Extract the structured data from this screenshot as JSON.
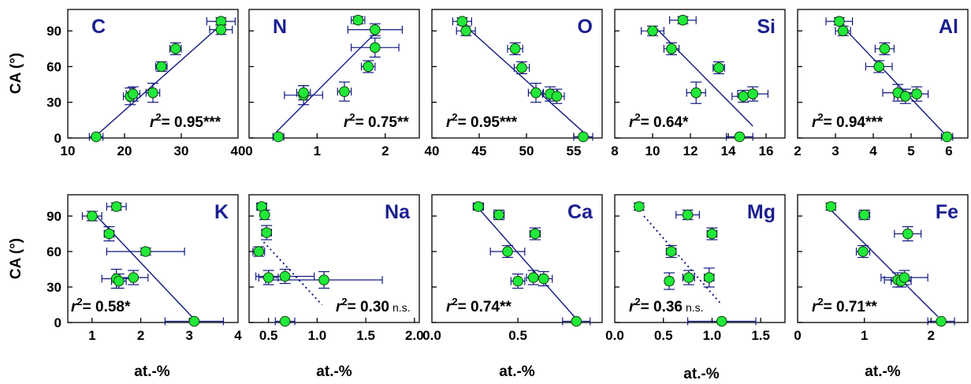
{
  "figure": {
    "y_axis_label": "CA (°)",
    "x_axis_label": "at.-%"
  },
  "colors": {
    "axis": "#000000",
    "line": "#101880",
    "marker_fill": "#22e83a",
    "marker_edge": "#0b3d0b",
    "element_label": "#1b1f8f"
  },
  "chart_data": [
    {
      "type": "scatter",
      "element": "C",
      "xticks": [
        "10",
        "20",
        "30",
        "40"
      ],
      "xlim": [
        10,
        40
      ],
      "yticks": [
        "0",
        "30",
        "60",
        "90"
      ],
      "ylim": [
        0,
        108
      ],
      "r2_text": "0.95***",
      "fit": {
        "style": "solid",
        "from": [
          15,
          2
        ],
        "to": [
          37,
          95
        ]
      },
      "points": [
        {
          "x": 15.0,
          "y": 1,
          "xerr": 1.2,
          "yerr": 0
        },
        {
          "x": 21.0,
          "y": 35,
          "xerr": 1.2,
          "yerr": 7
        },
        {
          "x": 21.5,
          "y": 37,
          "xerr": 1.2,
          "yerr": 6
        },
        {
          "x": 25.0,
          "y": 38,
          "xerr": 1.2,
          "yerr": 8
        },
        {
          "x": 26.5,
          "y": 60,
          "xerr": 1.0,
          "yerr": 4
        },
        {
          "x": 29.0,
          "y": 75,
          "xerr": 1.0,
          "yerr": 5
        },
        {
          "x": 37.0,
          "y": 98,
          "xerr": 2.5,
          "yerr": 3
        },
        {
          "x": 37.0,
          "y": 91,
          "xerr": 2.0,
          "yerr": 4
        }
      ]
    },
    {
      "type": "scatter",
      "element": "N",
      "xticks": [
        "0",
        "1",
        "2"
      ],
      "xlim": [
        0,
        2.5
      ],
      "yticks": [],
      "ylim": [
        0,
        108
      ],
      "r2_text": "0.75**",
      "fit": {
        "style": "solid",
        "from": [
          0.4,
          5
        ],
        "to": [
          1.85,
          88
        ]
      },
      "points": [
        {
          "x": 0.43,
          "y": 1,
          "xerr": 0.08,
          "yerr": 0
        },
        {
          "x": 0.8,
          "y": 36,
          "xerr": 0.28,
          "yerr": 8
        },
        {
          "x": 0.8,
          "y": 38,
          "xerr": 0.1,
          "yerr": 6
        },
        {
          "x": 1.4,
          "y": 39,
          "xerr": 0.1,
          "yerr": 8
        },
        {
          "x": 1.6,
          "y": 99,
          "xerr": 0.1,
          "yerr": 3
        },
        {
          "x": 1.85,
          "y": 91,
          "xerr": 0.4,
          "yerr": 5
        },
        {
          "x": 1.75,
          "y": 60,
          "xerr": 0.1,
          "yerr": 5
        },
        {
          "x": 1.85,
          "y": 76,
          "xerr": 0.35,
          "yerr": 8
        }
      ]
    },
    {
      "type": "scatter",
      "element": "O",
      "xticks": [
        "40",
        "45",
        "50",
        "55"
      ],
      "xlim": [
        40,
        58
      ],
      "yticks": [],
      "ylim": [
        0,
        108
      ],
      "r2_text": "0.95***",
      "fit": {
        "style": "solid",
        "from": [
          43,
          98
        ],
        "to": [
          56,
          5
        ]
      },
      "points": [
        {
          "x": 43.2,
          "y": 98,
          "xerr": 1.0,
          "yerr": 3
        },
        {
          "x": 43.6,
          "y": 90,
          "xerr": 1.0,
          "yerr": 4
        },
        {
          "x": 48.8,
          "y": 75,
          "xerr": 0.8,
          "yerr": 5
        },
        {
          "x": 49.5,
          "y": 59,
          "xerr": 0.8,
          "yerr": 5
        },
        {
          "x": 51.0,
          "y": 38,
          "xerr": 0.8,
          "yerr": 8
        },
        {
          "x": 52.5,
          "y": 37,
          "xerr": 0.8,
          "yerr": 6
        },
        {
          "x": 53.2,
          "y": 35,
          "xerr": 0.8,
          "yerr": 6
        },
        {
          "x": 56.0,
          "y": 1,
          "xerr": 1.0,
          "yerr": 0
        }
      ]
    },
    {
      "type": "scatter",
      "element": "Si",
      "xticks": [
        "8",
        "10",
        "12",
        "14",
        "16"
      ],
      "xlim": [
        8,
        17
      ],
      "yticks": [],
      "ylim": [
        0,
        108
      ],
      "r2_text": "0.64*",
      "fit": {
        "style": "solid",
        "from": [
          10.2,
          92
        ],
        "to": [
          15.3,
          10
        ]
      },
      "points": [
        {
          "x": 10.0,
          "y": 90,
          "xerr": 0.6,
          "yerr": 4
        },
        {
          "x": 11.6,
          "y": 99,
          "xerr": 0.7,
          "yerr": 3
        },
        {
          "x": 11.0,
          "y": 75,
          "xerr": 0.4,
          "yerr": 5
        },
        {
          "x": 12.3,
          "y": 38,
          "xerr": 0.5,
          "yerr": 9
        },
        {
          "x": 13.5,
          "y": 59,
          "xerr": 0.3,
          "yerr": 5
        },
        {
          "x": 14.8,
          "y": 35,
          "xerr": 0.6,
          "yerr": 5
        },
        {
          "x": 15.3,
          "y": 37,
          "xerr": 0.8,
          "yerr": 6
        },
        {
          "x": 14.6,
          "y": 1,
          "xerr": 0.7,
          "yerr": 0
        }
      ]
    },
    {
      "type": "scatter",
      "element": "Al",
      "xticks": [
        "2",
        "3",
        "4",
        "5",
        "6"
      ],
      "xlim": [
        2,
        6.5
      ],
      "yticks": [],
      "ylim": [
        0,
        108
      ],
      "r2_text": "0.94***",
      "fit": {
        "style": "solid",
        "from": [
          3.0,
          100
        ],
        "to": [
          5.9,
          3
        ]
      },
      "points": [
        {
          "x": 3.1,
          "y": 98,
          "xerr": 0.35,
          "yerr": 3
        },
        {
          "x": 3.2,
          "y": 90,
          "xerr": 0.2,
          "yerr": 4
        },
        {
          "x": 4.3,
          "y": 75,
          "xerr": 0.25,
          "yerr": 5
        },
        {
          "x": 4.15,
          "y": 60,
          "xerr": 0.35,
          "yerr": 5
        },
        {
          "x": 4.65,
          "y": 38,
          "xerr": 0.4,
          "yerr": 7
        },
        {
          "x": 4.85,
          "y": 35,
          "xerr": 0.3,
          "yerr": 6
        },
        {
          "x": 5.15,
          "y": 37,
          "xerr": 0.3,
          "yerr": 6
        },
        {
          "x": 5.95,
          "y": 1,
          "xerr": 0.15,
          "yerr": 0
        }
      ]
    },
    {
      "type": "scatter",
      "element": "K",
      "xticks": [
        "1",
        "2",
        "3",
        "4"
      ],
      "xlim": [
        0.5,
        4
      ],
      "yticks": [
        "0",
        "30",
        "60",
        "90"
      ],
      "ylim": [
        0,
        108
      ],
      "r2_text": "0.58*",
      "fit": {
        "style": "solid",
        "from": [
          1.0,
          94
        ],
        "to": [
          3.05,
          5
        ]
      },
      "points": [
        {
          "x": 1.0,
          "y": 90,
          "xerr": 0.2,
          "yerr": 4
        },
        {
          "x": 1.5,
          "y": 98,
          "xerr": 0.2,
          "yerr": 3
        },
        {
          "x": 1.35,
          "y": 75,
          "xerr": 0.1,
          "yerr": 6
        },
        {
          "x": 2.1,
          "y": 60,
          "xerr": 0.8,
          "yerr": 3
        },
        {
          "x": 1.5,
          "y": 37,
          "xerr": 0.3,
          "yerr": 8
        },
        {
          "x": 1.55,
          "y": 35,
          "xerr": 0.15,
          "yerr": 6
        },
        {
          "x": 1.85,
          "y": 38,
          "xerr": 0.3,
          "yerr": 6
        },
        {
          "x": 3.1,
          "y": 1,
          "xerr": 0.6,
          "yerr": 0
        }
      ]
    },
    {
      "type": "scatter",
      "element": "Na",
      "xticks": [
        "0.5",
        "1.0",
        "1.5",
        "2.0"
      ],
      "xlim": [
        0.3,
        2.05
      ],
      "yticks": [],
      "ylim": [
        0,
        108
      ],
      "r2_text": "0.30",
      "r2_suffix": "n.s.",
      "fit": {
        "style": "dotted",
        "from": [
          0.45,
          68
        ],
        "to": [
          1.05,
          15
        ]
      },
      "points": [
        {
          "x": 0.43,
          "y": 98,
          "xerr": 0.05,
          "yerr": 3
        },
        {
          "x": 0.46,
          "y": 91,
          "xerr": 0.03,
          "yerr": 4
        },
        {
          "x": 0.48,
          "y": 76,
          "xerr": 0.05,
          "yerr": 6
        },
        {
          "x": 0.4,
          "y": 60,
          "xerr": 0.06,
          "yerr": 4
        },
        {
          "x": 0.5,
          "y": 38,
          "xerr": 0.1,
          "yerr": 6
        },
        {
          "x": 0.67,
          "y": 39,
          "xerr": 0.3,
          "yerr": 6
        },
        {
          "x": 1.07,
          "y": 36,
          "xerr": 0.6,
          "yerr": 7
        },
        {
          "x": 0.67,
          "y": 1,
          "xerr": 0.1,
          "yerr": 0
        }
      ]
    },
    {
      "type": "scatter",
      "element": "Ca",
      "xticks": [
        "0.0",
        "0.5"
      ],
      "xlim": [
        0,
        0.99
      ],
      "yticks": [],
      "ylim": [
        0,
        108
      ],
      "r2_text": "0.74**",
      "fit": {
        "style": "solid",
        "from": [
          0.25,
          100
        ],
        "to": [
          0.84,
          3
        ]
      },
      "points": [
        {
          "x": 0.27,
          "y": 98,
          "xerr": 0.03,
          "yerr": 3
        },
        {
          "x": 0.39,
          "y": 91,
          "xerr": 0.03,
          "yerr": 4
        },
        {
          "x": 0.6,
          "y": 75,
          "xerr": 0.03,
          "yerr": 5
        },
        {
          "x": 0.44,
          "y": 60,
          "xerr": 0.1,
          "yerr": 5
        },
        {
          "x": 0.5,
          "y": 35,
          "xerr": 0.04,
          "yerr": 6
        },
        {
          "x": 0.59,
          "y": 38,
          "xerr": 0.04,
          "yerr": 6
        },
        {
          "x": 0.65,
          "y": 37,
          "xerr": 0.05,
          "yerr": 6
        },
        {
          "x": 0.84,
          "y": 1,
          "xerr": 0.08,
          "yerr": 0
        }
      ]
    },
    {
      "type": "scatter",
      "element": "Mg",
      "xticks": [
        "0.0",
        "0.5",
        "1.0",
        "1.5"
      ],
      "xlim": [
        0,
        1.75
      ],
      "yticks": [],
      "ylim": [
        0,
        108
      ],
      "r2_text": "0.36",
      "r2_suffix": "n.s.",
      "fit": {
        "style": "dotted",
        "from": [
          0.3,
          90
        ],
        "to": [
          1.1,
          15
        ]
      },
      "points": [
        {
          "x": 0.25,
          "y": 98,
          "xerr": 0,
          "yerr": 3
        },
        {
          "x": 0.75,
          "y": 91,
          "xerr": 0.12,
          "yerr": 4
        },
        {
          "x": 1.0,
          "y": 75,
          "xerr": 0.05,
          "yerr": 5
        },
        {
          "x": 0.58,
          "y": 60,
          "xerr": 0.05,
          "yerr": 5
        },
        {
          "x": 0.56,
          "y": 35,
          "xerr": 0.04,
          "yerr": 7
        },
        {
          "x": 0.76,
          "y": 38,
          "xerr": 0.06,
          "yerr": 6
        },
        {
          "x": 0.97,
          "y": 38,
          "xerr": 0.05,
          "yerr": 8
        },
        {
          "x": 1.1,
          "y": 1,
          "xerr": 0.35,
          "yerr": 0
        }
      ]
    },
    {
      "type": "scatter",
      "element": "Fe",
      "xticks": [
        "0",
        "1",
        "2"
      ],
      "xlim": [
        0,
        2.55
      ],
      "yticks": [],
      "ylim": [
        0,
        108
      ],
      "r2_text": "0.71**",
      "fit": {
        "style": "solid",
        "from": [
          0.5,
          95
        ],
        "to": [
          2.1,
          5
        ]
      },
      "points": [
        {
          "x": 0.5,
          "y": 98,
          "xerr": 0.05,
          "yerr": 3
        },
        {
          "x": 1.0,
          "y": 91,
          "xerr": 0.08,
          "yerr": 4
        },
        {
          "x": 1.65,
          "y": 75,
          "xerr": 0.2,
          "yerr": 6
        },
        {
          "x": 0.98,
          "y": 60,
          "xerr": 0.1,
          "yerr": 5
        },
        {
          "x": 1.5,
          "y": 36,
          "xerr": 0.2,
          "yerr": 6
        },
        {
          "x": 1.55,
          "y": 35,
          "xerr": 0.15,
          "yerr": 5
        },
        {
          "x": 1.6,
          "y": 38,
          "xerr": 0.35,
          "yerr": 6
        },
        {
          "x": 2.15,
          "y": 1,
          "xerr": 0.2,
          "yerr": 0
        }
      ]
    }
  ]
}
